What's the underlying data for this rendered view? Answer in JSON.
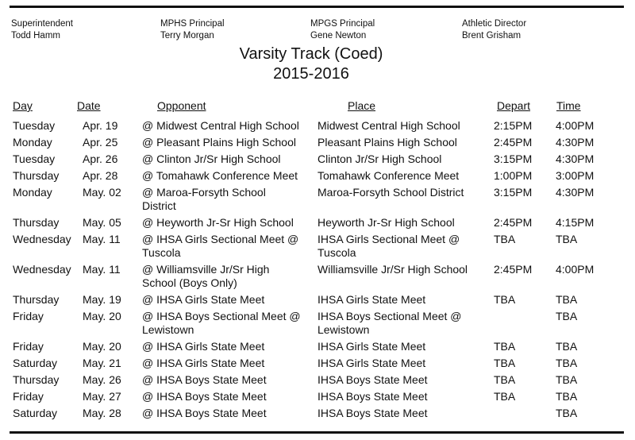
{
  "staff": [
    {
      "role": "Superintendent",
      "name": "Todd Hamm"
    },
    {
      "role": "MPHS Principal",
      "name": "Terry Morgan"
    },
    {
      "role": "MPGS Principal",
      "name": "Gene Newton"
    },
    {
      "role": "Athletic Director",
      "name": "Brent Grisham"
    }
  ],
  "title": "Varsity Track (Coed)",
  "season": "2015-2016",
  "columns": {
    "day": "Day",
    "date": "Date",
    "opponent": "Opponent",
    "place": "Place",
    "depart": "Depart",
    "time": "Time"
  },
  "rows": [
    {
      "day": "Tuesday",
      "date": "Apr. 19",
      "opponent": "@ Midwest Central High School",
      "place": "Midwest Central High School",
      "depart": "2:15PM",
      "time": "4:00PM"
    },
    {
      "day": "Monday",
      "date": "Apr. 25",
      "opponent": "@ Pleasant Plains High School",
      "place": "Pleasant Plains High School",
      "depart": "2:45PM",
      "time": "4:30PM"
    },
    {
      "day": "Tuesday",
      "date": "Apr. 26",
      "opponent": "@ Clinton Jr/Sr High School",
      "place": "Clinton Jr/Sr High School",
      "depart": "3:15PM",
      "time": "4:30PM"
    },
    {
      "day": "Thursday",
      "date": "Apr. 28",
      "opponent": "@ Tomahawk Conference Meet",
      "place": "Tomahawk Conference Meet",
      "depart": "1:00PM",
      "time": "3:00PM"
    },
    {
      "day": "Monday",
      "date": "May. 02",
      "opponent": "@ Maroa-Forsyth School\nDistrict",
      "place": "Maroa-Forsyth School District",
      "depart": "3:15PM",
      "time": "4:30PM"
    },
    {
      "day": "Thursday",
      "date": "May. 05",
      "opponent": "@ Heyworth Jr-Sr High School",
      "place": "Heyworth Jr-Sr High School",
      "depart": "2:45PM",
      "time": "4:15PM"
    },
    {
      "day": "Wednesday",
      "date": "May. 11",
      "opponent": "@ IHSA Girls Sectional Meet @\nTuscola",
      "place": "IHSA Girls Sectional Meet @\nTuscola",
      "depart": "TBA",
      "time": "TBA"
    },
    {
      "day": "Wednesday",
      "date": "May. 11",
      "opponent": "@ Williamsville Jr/Sr High\nSchool (Boys Only)",
      "place": "Williamsville Jr/Sr High School",
      "depart": "2:45PM",
      "time": "4:00PM"
    },
    {
      "day": "Thursday",
      "date": "May. 19",
      "opponent": "@ IHSA Girls State Meet",
      "place": "IHSA Girls State Meet",
      "depart": "TBA",
      "time": "TBA"
    },
    {
      "day": "Friday",
      "date": "May. 20",
      "opponent": "@ IHSA Boys Sectional Meet @\nLewistown",
      "place": "IHSA Boys Sectional Meet @\nLewistown",
      "depart": "",
      "time": "TBA"
    },
    {
      "day": "Friday",
      "date": "May. 20",
      "opponent": "@ IHSA Girls State Meet",
      "place": "IHSA Girls State Meet",
      "depart": "TBA",
      "time": "TBA"
    },
    {
      "day": "Saturday",
      "date": "May. 21",
      "opponent": "@ IHSA Girls State Meet",
      "place": "IHSA Girls State Meet",
      "depart": "TBA",
      "time": "TBA"
    },
    {
      "day": "Thursday",
      "date": "May. 26",
      "opponent": "@ IHSA Boys State Meet",
      "place": "IHSA Boys State Meet",
      "depart": "TBA",
      "time": "TBA"
    },
    {
      "day": "Friday",
      "date": "May. 27",
      "opponent": "@ IHSA Boys State Meet",
      "place": "IHSA Boys State Meet",
      "depart": "TBA",
      "time": "TBA"
    },
    {
      "day": "Saturday",
      "date": "May. 28",
      "opponent": "@ IHSA Boys State Meet",
      "place": "IHSA Boys State Meet",
      "depart": "",
      "time": "TBA"
    }
  ]
}
